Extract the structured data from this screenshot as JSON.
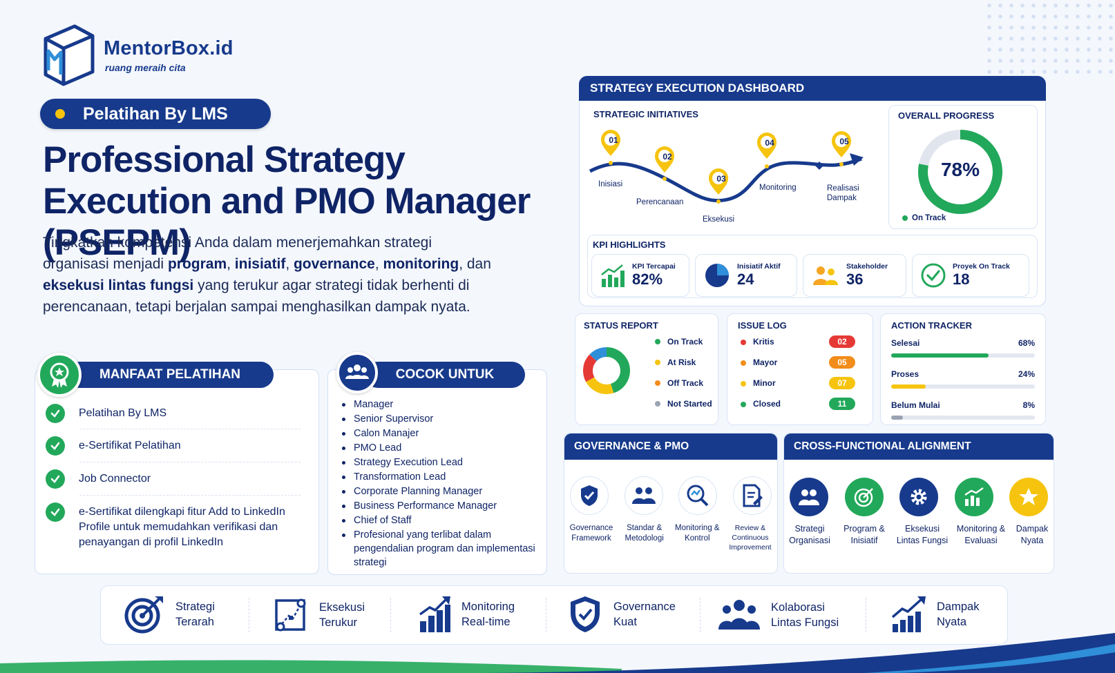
{
  "brand": {
    "name": "MentorBox.id",
    "tagline": "ruang meraih cita"
  },
  "badge_label": "Pelatihan By LMS",
  "title": "Professional Strategy Execution and PMO Manager (PSEPM)",
  "intro": {
    "p1": "Tingkatkan kompetensi Anda dalam menerjemahkan strategi organisasi menjadi ",
    "b1": "program",
    "s1": ", ",
    "b2": "inisiatif",
    "s2": ", ",
    "b3": "governance",
    "s3": ", ",
    "b4": "monitoring",
    "s4": ", dan ",
    "b5": "eksekusi lintas fungsi",
    "p2": " yang terukur agar strategi tidak berhenti di perencanaan, tetapi berjalan sampai menghasilkan dampak nyata."
  },
  "manfaat": {
    "heading": "MANFAAT PELATIHAN",
    "items": [
      "Pelatihan By LMS",
      "e-Sertifikat Pelatihan",
      "Job Connector",
      "e-Sertifikat dilengkapi fitur Add to LinkedIn Profile untuk memudahkan verifikasi dan penayangan di profil LinkedIn"
    ]
  },
  "cocok": {
    "heading": "COCOK UNTUK",
    "items": [
      "Manager",
      "Senior Supervisor",
      "Calon Manajer",
      "PMO Lead",
      "Strategy Execution Lead",
      "Transformation Lead",
      "Corporate Planning Manager",
      "Business Performance Manager",
      "Chief of Staff",
      "Profesional yang terlibat dalam pengendalian program dan implementasi strategi"
    ]
  },
  "dashboard": {
    "title": "STRATEGY EXECUTION DASHBOARD",
    "initiatives": {
      "heading": "STRATEGIC INITIATIVES",
      "steps": [
        {
          "num": "01",
          "label": "Inisiasi"
        },
        {
          "num": "02",
          "label": "Perencanaan"
        },
        {
          "num": "03",
          "label": "Eksekusi"
        },
        {
          "num": "04",
          "label": "Monitoring"
        },
        {
          "num": "05",
          "label": "Realisasi Dampak"
        }
      ]
    },
    "overall": {
      "heading": "OVERALL PROGRESS",
      "value": "78%",
      "progress": 0.78,
      "status": "On Track"
    },
    "kpi": {
      "heading": "KPI HIGHLIGHTS",
      "items": [
        {
          "label": "KPI Tercapai",
          "value": "82%"
        },
        {
          "label": "Inisiatif Aktif",
          "value": "24"
        },
        {
          "label": "Stakeholder",
          "value": "36"
        },
        {
          "label": "Proyek On Track",
          "value": "18"
        }
      ]
    },
    "status_report": {
      "heading": "STATUS REPORT",
      "legend": [
        "On Track",
        "At Risk",
        "Off Track",
        "Not Started"
      ],
      "shares": [
        0.45,
        0.22,
        0.2,
        0.13
      ],
      "colors": [
        "#22a85a",
        "#f6c40f",
        "#e53935",
        "#2f8fd8"
      ]
    },
    "issue_log": {
      "heading": "ISSUE LOG",
      "items": [
        {
          "label": "Kritis",
          "count": "02",
          "color": "#e53935"
        },
        {
          "label": "Mayor",
          "count": "05",
          "color": "#f28c1a"
        },
        {
          "label": "Minor",
          "count": "07",
          "color": "#f6c40f"
        },
        {
          "label": "Closed",
          "count": "11",
          "color": "#22a85a"
        }
      ]
    },
    "action_tracker": {
      "heading": "ACTION TRACKER",
      "items": [
        {
          "label": "Selesai",
          "value": "68%",
          "fill": 0.68,
          "color": "#22a85a"
        },
        {
          "label": "Proses",
          "value": "24%",
          "fill": 0.24,
          "color": "#f6c40f"
        },
        {
          "label": "Belum Mulai",
          "value": "8%",
          "fill": 0.08,
          "color": "#9aa3b2"
        }
      ]
    }
  },
  "governance": {
    "heading": "GOVERNANCE & PMO",
    "items": [
      {
        "l1": "Governance",
        "l2": "Framework",
        "l3": ""
      },
      {
        "l1": "Standar &",
        "l2": "Metodologi",
        "l3": ""
      },
      {
        "l1": "Monitoring &",
        "l2": "Kontrol",
        "l3": ""
      },
      {
        "l1": "Review &",
        "l2": "Continuous",
        "l3": "Improvement"
      }
    ]
  },
  "alignment": {
    "heading": "CROSS-FUNCTIONAL ALIGNMENT",
    "items": [
      {
        "l1": "Strategi",
        "l2": "Organisasi"
      },
      {
        "l1": "Program &",
        "l2": "Inisiatif"
      },
      {
        "l1": "Eksekusi",
        "l2": "Lintas Fungsi"
      },
      {
        "l1": "Monitoring &",
        "l2": "Evaluasi"
      },
      {
        "l1": "Dampak",
        "l2": "Nyata"
      }
    ]
  },
  "features": [
    {
      "l1": "Strategi",
      "l2": "Terarah"
    },
    {
      "l1": "Eksekusi",
      "l2": "Terukur"
    },
    {
      "l1": "Monitoring",
      "l2": "Real-time"
    },
    {
      "l1": "Governance",
      "l2": "Kuat"
    },
    {
      "l1": "Kolaborasi",
      "l2": "Lintas Fungsi"
    },
    {
      "l1": "Dampak",
      "l2": "Nyata"
    }
  ]
}
